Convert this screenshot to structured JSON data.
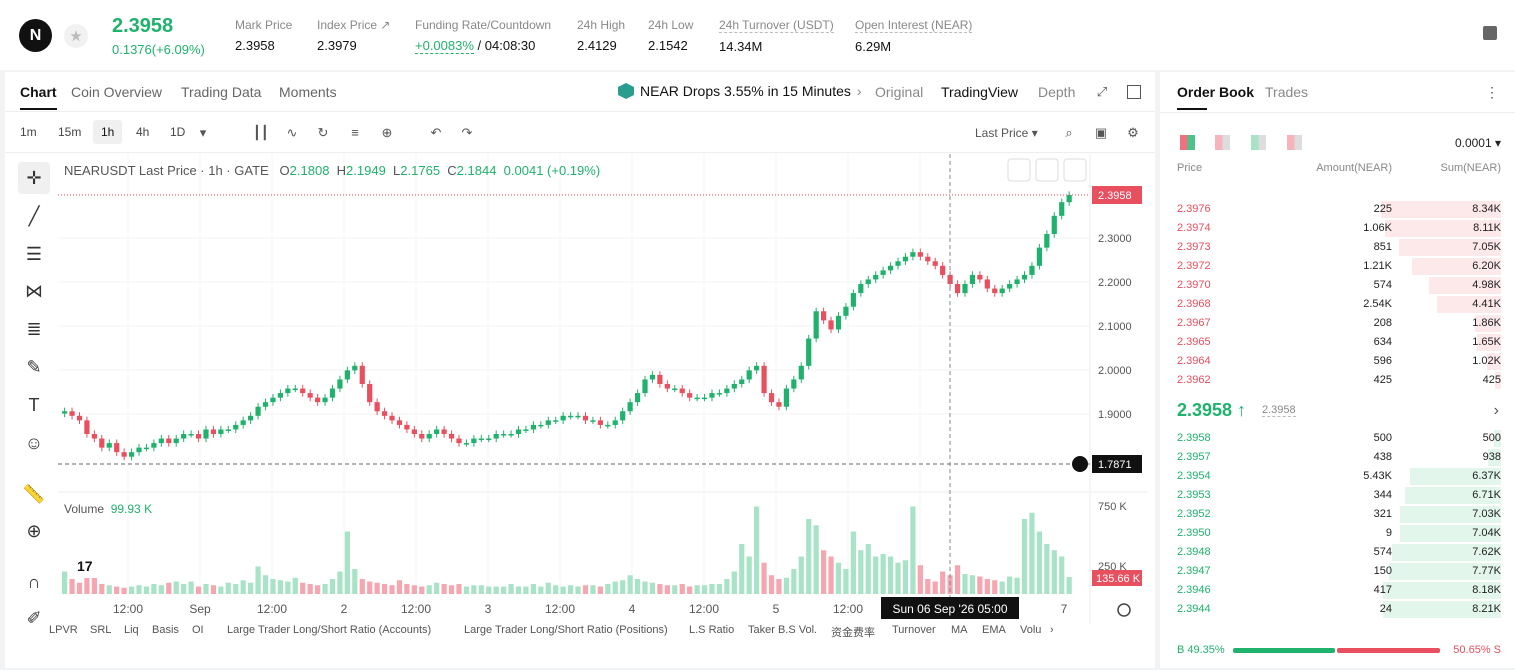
{
  "header": {
    "symbol_logo": "N",
    "price": "2.3958",
    "change": "0.1376(+6.09%)",
    "stats": [
      {
        "label": "Mark Price",
        "value": "2.3958"
      },
      {
        "label": "Index Price ↗",
        "value": "2.3979"
      },
      {
        "label": "Funding Rate/Countdown",
        "value_rate": "+0.0083%",
        "value_countdown": "/ 04:08:30"
      },
      {
        "label": "24h High",
        "value": "2.4129"
      },
      {
        "label": "24h Low",
        "value": "2.1542"
      },
      {
        "label": "24h Turnover (USDT)",
        "value": "14.34M"
      },
      {
        "label": "Open Interest (NEAR)",
        "value": "6.29M"
      }
    ]
  },
  "chart_tabs": [
    "Chart",
    "Coin Overview",
    "Trading Data",
    "Moments"
  ],
  "news": "NEAR Drops 3.55% in 15 Minutes",
  "view_tabs": [
    "Original",
    "TradingView",
    "Depth"
  ],
  "timeframes": [
    "1m",
    "15m",
    "1h",
    "4h",
    "1D"
  ],
  "selected_timeframe": "1h",
  "price_type": "Last Price",
  "legend": {
    "title": "NEARUSDT Last Price · 1h · GATE",
    "o_label": "O",
    "o": "2.1808",
    "h_label": "H",
    "h": "2.1949",
    "l_label": "L",
    "l": "2.1765",
    "c_label": "C",
    "c": "2.1844",
    "chg": "0.0041 (+0.19%)"
  },
  "volume_label": "Volume",
  "volume_value": "99.93 K",
  "crosshair_price": "1.7871",
  "last_price_tag": "2.3958",
  "volume_tag": "135.66 K",
  "crosshair_time": "Sun 06 Sep '26   05:00",
  "price_axis": [
    "2.3000",
    "2.2000",
    "2.1000",
    "2.0000",
    "1.9000"
  ],
  "volume_axis": [
    "750 K",
    "250 K"
  ],
  "time_axis": [
    "12:00",
    "Sep",
    "12:00",
    "2",
    "12:00",
    "3",
    "12:00",
    "4",
    "12:00",
    "5",
    "12:00",
    "7"
  ],
  "indicators": [
    "LPVR",
    "SRL",
    "Liq",
    "Basis",
    "OI",
    "Large Trader Long/Short Ratio (Accounts)",
    "Large Trader Long/Short Ratio (Positions)",
    "L.S Ratio",
    "Taker B.S Vol.",
    "资金费率",
    "Turnover",
    "MA",
    "EMA",
    "Volu"
  ],
  "chart_data": {
    "type": "candlestick",
    "ylim": [
      1.76,
      2.42
    ],
    "close_series": [
      1.92,
      1.91,
      1.9,
      1.87,
      1.86,
      1.84,
      1.85,
      1.83,
      1.82,
      1.83,
      1.84,
      1.84,
      1.85,
      1.86,
      1.85,
      1.86,
      1.87,
      1.87,
      1.86,
      1.88,
      1.87,
      1.88,
      1.88,
      1.89,
      1.9,
      1.91,
      1.93,
      1.94,
      1.95,
      1.96,
      1.97,
      1.97,
      1.96,
      1.95,
      1.94,
      1.95,
      1.97,
      1.99,
      2.01,
      2.02,
      1.98,
      1.94,
      1.92,
      1.91,
      1.9,
      1.89,
      1.88,
      1.87,
      1.86,
      1.87,
      1.88,
      1.87,
      1.86,
      1.85,
      1.85,
      1.86,
      1.86,
      1.86,
      1.87,
      1.87,
      1.87,
      1.88,
      1.88,
      1.89,
      1.89,
      1.9,
      1.9,
      1.91,
      1.91,
      1.91,
      1.9,
      1.9,
      1.89,
      1.89,
      1.9,
      1.92,
      1.94,
      1.96,
      1.99,
      2.0,
      1.98,
      1.97,
      1.97,
      1.96,
      1.95,
      1.95,
      1.95,
      1.96,
      1.96,
      1.97,
      1.98,
      1.99,
      2.01,
      2.02,
      1.96,
      1.94,
      1.93,
      1.97,
      1.99,
      2.02,
      2.08,
      2.14,
      2.12,
      2.1,
      2.13,
      2.15,
      2.18,
      2.2,
      2.21,
      2.22,
      2.23,
      2.24,
      2.25,
      2.26,
      2.27,
      2.26,
      2.25,
      2.24,
      2.22,
      2.2,
      2.18,
      2.2,
      2.22,
      2.21,
      2.19,
      2.18,
      2.19,
      2.2,
      2.21,
      2.22,
      2.24,
      2.28,
      2.31,
      2.35,
      2.38,
      2.3958
    ],
    "volume_series": [
      180,
      120,
      90,
      300,
      200,
      80,
      70,
      60,
      50,
      60,
      70,
      60,
      80,
      70,
      90,
      100,
      80,
      100,
      60,
      80,
      70,
      60,
      90,
      80,
      110,
      90,
      220,
      150,
      120,
      110,
      100,
      130,
      90,
      80,
      70,
      80,
      120,
      180,
      500,
      200,
      120,
      100,
      90,
      80,
      70,
      110,
      80,
      70,
      60,
      70,
      90,
      80,
      70,
      80,
      60,
      70,
      70,
      60,
      60,
      60,
      80,
      60,
      60,
      80,
      60,
      90,
      70,
      60,
      70,
      60,
      70,
      70,
      60,
      80,
      100,
      110,
      150,
      120,
      100,
      90,
      80,
      70,
      70,
      80,
      60,
      70,
      70,
      80,
      80,
      120,
      180,
      400,
      300,
      700,
      250,
      150,
      120,
      130,
      200,
      300,
      600,
      550,
      350,
      300,
      250,
      200,
      500,
      350,
      400,
      300,
      320,
      300,
      250,
      270,
      700,
      230,
      120,
      100,
      180,
      150,
      230,
      160,
      150,
      140,
      120,
      110,
      100,
      140,
      130,
      600,
      650,
      500,
      400,
      350,
      300,
      135.66
    ]
  },
  "orderbook": {
    "tabs": [
      "Order Book",
      "Trades"
    ],
    "precision": "0.0001",
    "headers": [
      "Price",
      "Amount(NEAR)",
      "Sum(NEAR)"
    ],
    "asks": [
      {
        "price": "2.3976",
        "amount": "225",
        "sum": "8.34K",
        "depth": 1.0
      },
      {
        "price": "2.3974",
        "amount": "1.06K",
        "sum": "8.11K",
        "depth": 0.97
      },
      {
        "price": "2.3973",
        "amount": "851",
        "sum": "7.05K",
        "depth": 0.85
      },
      {
        "price": "2.3972",
        "amount": "1.21K",
        "sum": "6.20K",
        "depth": 0.74
      },
      {
        "price": "2.3970",
        "amount": "574",
        "sum": "4.98K",
        "depth": 0.6
      },
      {
        "price": "2.3968",
        "amount": "2.54K",
        "sum": "4.41K",
        "depth": 0.53
      },
      {
        "price": "2.3967",
        "amount": "208",
        "sum": "1.86K",
        "depth": 0.22
      },
      {
        "price": "2.3965",
        "amount": "634",
        "sum": "1.65K",
        "depth": 0.2
      },
      {
        "price": "2.3964",
        "amount": "596",
        "sum": "1.02K",
        "depth": 0.12
      },
      {
        "price": "2.3962",
        "amount": "425",
        "sum": "425",
        "depth": 0.05
      }
    ],
    "mid_price": "2.3958 ↑",
    "mid_mark": "2.3958",
    "bids": [
      {
        "price": "2.3958",
        "amount": "500",
        "sum": "500",
        "depth": 0.06
      },
      {
        "price": "2.3957",
        "amount": "438",
        "sum": "938",
        "depth": 0.11
      },
      {
        "price": "2.3954",
        "amount": "5.43K",
        "sum": "6.37K",
        "depth": 0.76
      },
      {
        "price": "2.3953",
        "amount": "344",
        "sum": "6.71K",
        "depth": 0.8
      },
      {
        "price": "2.3952",
        "amount": "321",
        "sum": "7.03K",
        "depth": 0.84
      },
      {
        "price": "2.3950",
        "amount": "9",
        "sum": "7.04K",
        "depth": 0.84
      },
      {
        "price": "2.3948",
        "amount": "574",
        "sum": "7.62K",
        "depth": 0.91
      },
      {
        "price": "2.3947",
        "amount": "150",
        "sum": "7.77K",
        "depth": 0.93
      },
      {
        "price": "2.3946",
        "amount": "417",
        "sum": "8.18K",
        "depth": 0.98
      },
      {
        "price": "2.3944",
        "amount": "24",
        "sum": "8.21K",
        "depth": 0.98
      }
    ],
    "buy_ratio_label": "B 49.35%",
    "sell_ratio_label": "50.65% S",
    "buy_ratio": 0.4935
  }
}
